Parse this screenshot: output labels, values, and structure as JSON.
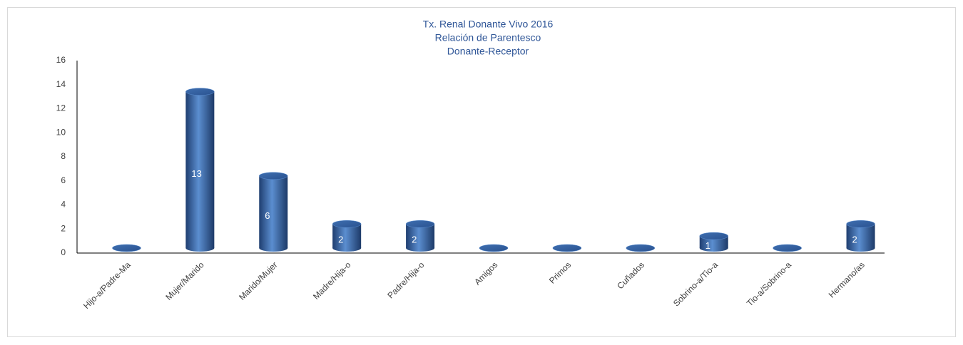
{
  "chart_data": {
    "type": "cylinder-bar",
    "title": [
      "Tx. Renal Donante Vivo 2016",
      "Relación de Parentesco",
      "Donante-Receptor"
    ],
    "categories": [
      "Hijo-a/Padre-Ma",
      "Mujer/Marido",
      "Marido/Mujer",
      "Madre/Hija-o",
      "Padre/Hija-o",
      "Amigos",
      "Primos",
      "Cuñados",
      "Sobrino-a/Tio-a",
      "Tio-a/Sobrino-a",
      "Hermano/as"
    ],
    "values": [
      0,
      13,
      6,
      2,
      2,
      0,
      0,
      0,
      1,
      0,
      2
    ],
    "color": "#4f81bd",
    "ylim": [
      0,
      16
    ],
    "yticks": [
      0,
      2,
      4,
      6,
      8,
      10,
      12,
      14,
      16
    ],
    "grid": false
  }
}
